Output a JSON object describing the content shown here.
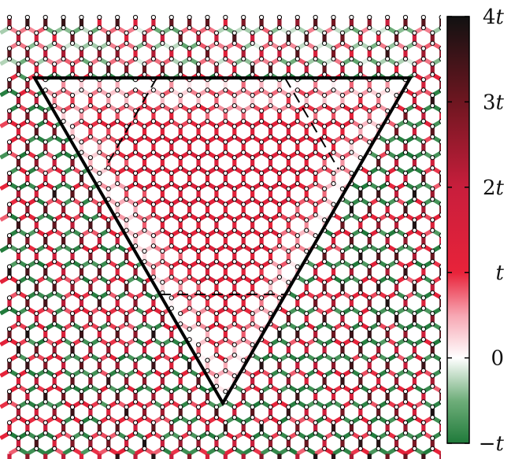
{
  "figure": {
    "description_colors": {
      "negative": "#1f7a3a",
      "zero": "#ffffff",
      "t": "#e8233a",
      "two_t": "#c81e3c",
      "three_t": "#6e1620",
      "four_t": "#111111"
    }
  },
  "colorbar": {
    "ticks": [
      {
        "value": 4,
        "label_num": "4",
        "label_var": "t"
      },
      {
        "value": 3,
        "label_num": "3",
        "label_var": "t"
      },
      {
        "value": 2,
        "label_num": "2",
        "label_var": "t"
      },
      {
        "value": 1,
        "label_num": "",
        "label_var": "t"
      },
      {
        "value": 0,
        "label_num": "0",
        "label_var": ""
      },
      {
        "value": -1,
        "label_num": "−",
        "label_var": "t"
      }
    ],
    "range": [
      -1,
      4
    ]
  },
  "overlay": {
    "solid_triangle": "triangle",
    "dashed_lines": "dashed"
  }
}
